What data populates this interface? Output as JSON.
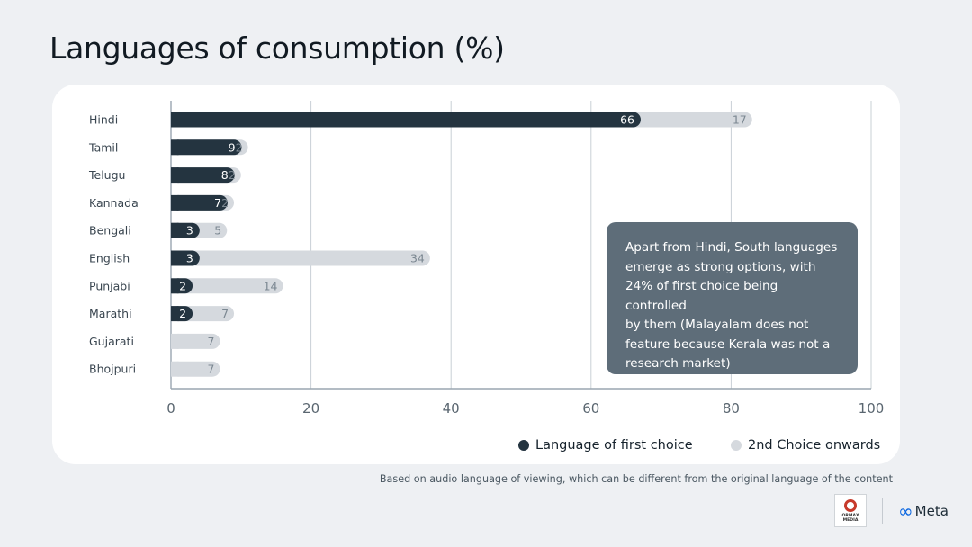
{
  "title": "Languages of consumption (%)",
  "chart_data": {
    "type": "bar",
    "orientation": "horizontal",
    "stacked": true,
    "categories": [
      "Hindi",
      "Tamil",
      "Telugu",
      "Kannada",
      "Bengali",
      "English",
      "Punjabi",
      "Marathi",
      "Gujarati",
      "Bhojpuri"
    ],
    "series": [
      {
        "name": "Language of first choice",
        "values": [
          66,
          9,
          8,
          7,
          3,
          3,
          2,
          2,
          0,
          0
        ],
        "color": "#243440"
      },
      {
        "name": "2nd Choice onwards",
        "values": [
          17,
          2,
          2,
          2,
          5,
          34,
          14,
          7,
          7,
          7
        ],
        "color": "#d5d9de"
      }
    ],
    "xlim": [
      0,
      100
    ],
    "xticks": [
      "0",
      "20",
      "40",
      "60",
      "80",
      "100"
    ],
    "grid": true,
    "legend": "bottom-right"
  },
  "callout": {
    "lines": [
      "Apart from Hindi, South languages",
      "emerge as strong options, with",
      "24% of first choice being controlled",
      "by them (Malayalam does not",
      "feature because Kerala was not a",
      "research market)"
    ]
  },
  "legend": {
    "first_label": "Language of first choice",
    "second_label": "2nd Choice onwards"
  },
  "footnote": "Based on audio language of viewing, which can be different from the original language of the content",
  "logos": {
    "ormax_line1": "ORMAX",
    "ormax_line2": "MEDIA",
    "meta_symbol": "∞",
    "meta_text": "Meta"
  },
  "colors": {
    "primary": "#243440",
    "secondary": "#d5d9de",
    "callout_bg": "#5e6d79"
  }
}
